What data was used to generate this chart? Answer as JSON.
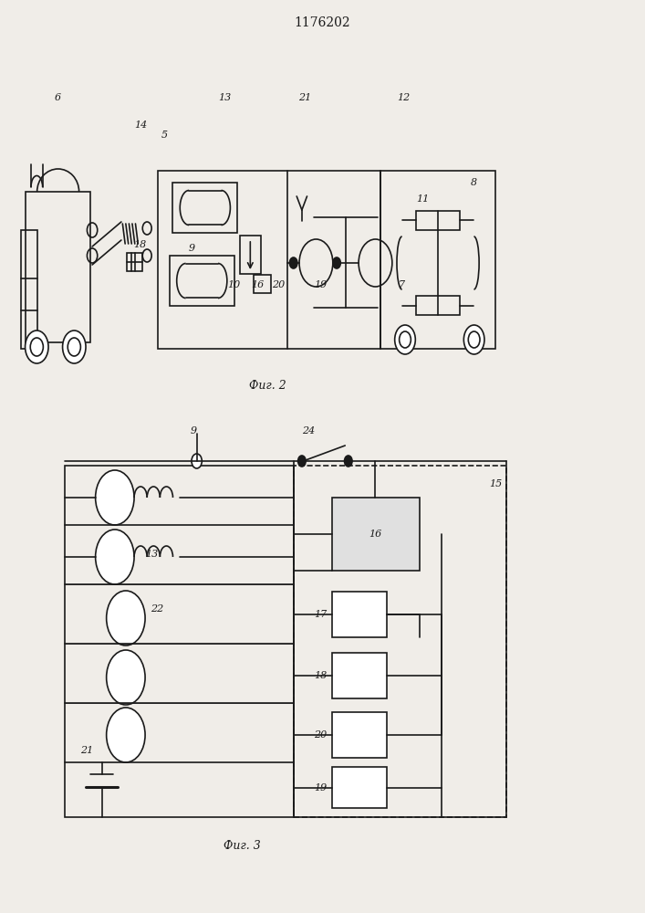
{
  "title": "1176202",
  "fig2_caption": "Фиг. 2",
  "fig3_caption": "Фиг. 3",
  "bg_color": "#f0ede8",
  "line_color": "#1a1a1a",
  "line_width": 1.2
}
